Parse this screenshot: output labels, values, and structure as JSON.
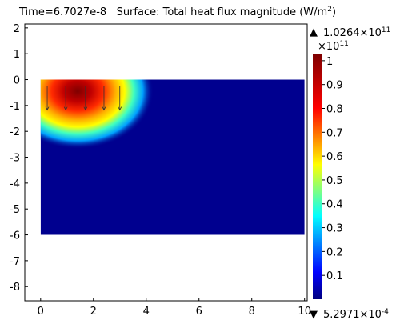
{
  "chart_data": {
    "type": "heatmap",
    "title": {
      "time_label": "Time=6.7027e-8",
      "surface_prefix": "Surface: Total heat flux magnitude (W/m",
      "surface_sup": "2",
      "surface_suffix": ")"
    },
    "xlabel": "",
    "ylabel": "",
    "xlim": [
      -0.6,
      10.1
    ],
    "ylim": [
      -8.55,
      2.15
    ],
    "x_ticks": [
      "0",
      "2",
      "4",
      "6",
      "8",
      "10"
    ],
    "y_ticks": [
      "2",
      "1",
      "0",
      "-1",
      "-2",
      "-3",
      "-4",
      "-5",
      "-6",
      "-7",
      "-8"
    ],
    "domain": {
      "x": [
        0,
        10
      ],
      "y": [
        -6,
        0
      ]
    },
    "hot_region": {
      "center_x": 1.4,
      "center_y": -0.45,
      "peak_value": 1.0
    },
    "colorbar": {
      "max_label": "1.0264×10",
      "max_sup": "11",
      "multiplier_label": "×10",
      "multiplier_sup": "11",
      "min_label": "5.2971×10",
      "min_sup": "-4",
      "ticks": [
        "1",
        "0.9",
        "0.8",
        "0.7",
        "0.6",
        "0.5",
        "0.4",
        "0.3",
        "0.2",
        "0.1"
      ],
      "range": [
        0,
        1.0264
      ],
      "colormap": [
        "#00007f",
        "#0000ff",
        "#00ffff",
        "#ffff00",
        "#ff0000",
        "#7f0000"
      ]
    },
    "domain_fill_color": "#00008f",
    "arrow_color": "#333333",
    "arrows_x": [
      0.25,
      0.95,
      1.7,
      2.4,
      3.0
    ]
  }
}
